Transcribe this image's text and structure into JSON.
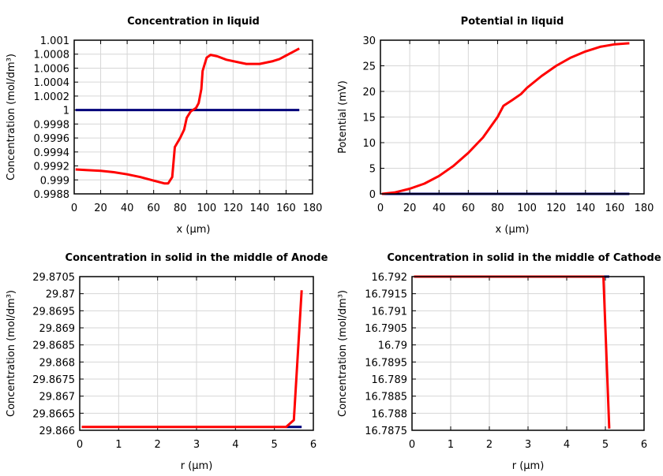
{
  "chart_data": [
    {
      "type": "line",
      "title": "Concentration in liquid",
      "xlabel": "x (µm)",
      "ylabel": "Concentration (mol/dm³)",
      "xlim": [
        0,
        180
      ],
      "ylim": [
        0.9988,
        1.001
      ],
      "xticks": [
        "0",
        "20",
        "40",
        "60",
        "80",
        "100",
        "120",
        "140",
        "160",
        "180"
      ],
      "xtick_values": [
        0,
        20,
        40,
        60,
        80,
        100,
        120,
        140,
        160,
        180
      ],
      "yticks": [
        "0.9988",
        "0.999",
        "0.9992",
        "0.9994",
        "0.9996",
        "0.9998",
        "1",
        "1.0002",
        "1.0004",
        "1.0006",
        "1.0008",
        "1.001"
      ],
      "ytick_values": [
        0.9988,
        0.999,
        0.9992,
        0.9994,
        0.9996,
        0.9998,
        1,
        1.0002,
        1.0004,
        1.0006,
        1.0008,
        1.001
      ],
      "grid": true,
      "series": [
        {
          "color": "#00007a",
          "x": [
            1,
            170
          ],
          "y": [
            1,
            1
          ]
        },
        {
          "color": "#ff0000",
          "x": [
            1,
            10,
            20,
            30,
            40,
            50,
            60,
            68,
            71,
            74,
            76,
            80,
            83,
            85,
            88,
            92,
            94,
            96,
            97,
            100,
            103,
            108,
            115,
            125,
            130,
            140,
            150,
            155,
            160,
            165,
            170
          ],
          "y": [
            0.99915,
            0.99914,
            0.99913,
            0.99911,
            0.99908,
            0.99904,
            0.99899,
            0.99895,
            0.99895,
            0.99904,
            0.99947,
            0.9996,
            0.99972,
            0.99989,
            0.99998,
            1.00003,
            1.0001,
            1.0003,
            1.00056,
            1.00075,
            1.00079,
            1.00077,
            1.00072,
            1.00068,
            1.00066,
            1.00066,
            1.0007,
            1.00073,
            1.00078,
            1.00083,
            1.00088
          ]
        }
      ]
    },
    {
      "type": "line",
      "title": "Potential in liquid",
      "xlabel": "x (µm)",
      "ylabel": "Potential (mV)",
      "xlim": [
        0,
        180
      ],
      "ylim": [
        0,
        30
      ],
      "xticks": [
        "0",
        "20",
        "40",
        "60",
        "80",
        "100",
        "120",
        "140",
        "160",
        "180"
      ],
      "xtick_values": [
        0,
        20,
        40,
        60,
        80,
        100,
        120,
        140,
        160,
        180
      ],
      "yticks": [
        "0",
        "5",
        "10",
        "15",
        "20",
        "25",
        "30"
      ],
      "ytick_values": [
        0,
        5,
        10,
        15,
        20,
        25,
        30
      ],
      "grid": true,
      "series": [
        {
          "color": "#00007a",
          "x": [
            1,
            170
          ],
          "y": [
            0,
            0
          ]
        },
        {
          "color": "#ff0000",
          "x": [
            1,
            10,
            20,
            30,
            40,
            50,
            60,
            70,
            80,
            84,
            90,
            96,
            100,
            110,
            120,
            130,
            140,
            150,
            160,
            170
          ],
          "y": [
            0,
            0.3,
            1,
            2,
            3.5,
            5.5,
            8,
            11,
            15,
            17.2,
            18.3,
            19.5,
            20.7,
            23,
            25,
            26.6,
            27.8,
            28.7,
            29.2,
            29.4
          ]
        }
      ]
    },
    {
      "type": "line",
      "title": "Concentration in solid in the middle of Anode",
      "xlabel": "r (µm)",
      "ylabel": "Concentration (mol/dm³)",
      "xlim": [
        0,
        6
      ],
      "ylim": [
        29.866,
        29.8705
      ],
      "xticks": [
        "0",
        "1",
        "2",
        "3",
        "4",
        "5",
        "6"
      ],
      "xtick_values": [
        0,
        1,
        2,
        3,
        4,
        5,
        6
      ],
      "yticks": [
        "29.866",
        "29.8665",
        "29.867",
        "29.8675",
        "29.868",
        "29.8685",
        "29.869",
        "29.8695",
        "29.87",
        "29.8705"
      ],
      "ytick_values": [
        29.866,
        29.8665,
        29.867,
        29.8675,
        29.868,
        29.8685,
        29.869,
        29.8695,
        29.87,
        29.8705
      ],
      "grid": true,
      "series": [
        {
          "color": "#00007a",
          "x": [
            5.3,
            5.7
          ],
          "y": [
            29.8661,
            29.8661
          ]
        },
        {
          "color": "#ff0000",
          "x": [
            0.05,
            5.3,
            5.5,
            5.7
          ],
          "y": [
            29.8661,
            29.8661,
            29.8663,
            29.8701
          ]
        }
      ]
    },
    {
      "type": "line",
      "title": "Concentration in solid in the middle of Cathode",
      "xlabel": "r (µm)",
      "ylabel": "Concentration (mol/dm³)",
      "xlim": [
        0,
        6
      ],
      "ylim": [
        16.7875,
        16.792
      ],
      "xticks": [
        "0",
        "1",
        "2",
        "3",
        "4",
        "5",
        "6"
      ],
      "xtick_values": [
        0,
        1,
        2,
        3,
        4,
        5,
        6
      ],
      "yticks": [
        "16.7875",
        "16.788",
        "16.7885",
        "16.789",
        "16.7895",
        "16.79",
        "16.7905",
        "16.791",
        "16.7915",
        "16.792"
      ],
      "ytick_values": [
        16.7875,
        16.788,
        16.7885,
        16.789,
        16.7895,
        16.79,
        16.7905,
        16.791,
        16.7915,
        16.792
      ],
      "grid": true,
      "series": [
        {
          "color": "#00007a",
          "x": [
            4.95,
            5.1
          ],
          "y": [
            16.792,
            16.792
          ]
        },
        {
          "color": "#ff0000",
          "x": [
            0.05,
            4.95,
            5.1
          ],
          "y": [
            16.792,
            16.792,
            16.78755
          ]
        }
      ]
    }
  ]
}
